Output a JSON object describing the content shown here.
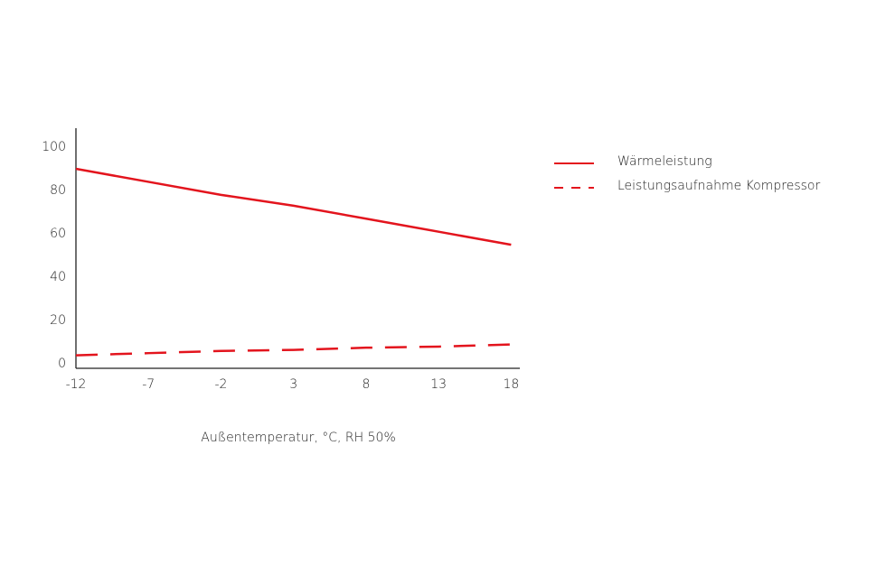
{
  "chart_data": {
    "type": "line",
    "x_label": "Außentemperatur, °C, RH 50%",
    "x": [
      -12,
      -7,
      -2,
      3,
      8,
      13,
      18
    ],
    "xlim": [
      -12,
      18.6
    ],
    "xticks": [
      -12,
      -7,
      -2,
      3,
      8,
      13,
      18
    ],
    "ylim": [
      -2,
      110
    ],
    "yticks": [
      0,
      20,
      40,
      60,
      80,
      100
    ],
    "legend": "right",
    "series": [
      {
        "name": "Wärmeleistung",
        "color": "#e3141d",
        "style": "solid",
        "values": [
          90,
          84,
          78,
          73,
          67,
          61,
          55
        ]
      },
      {
        "name": "Leistungsaufnahme Kompressor",
        "color": "#e3141d",
        "style": "dashed",
        "values": [
          4,
          5,
          6,
          6.5,
          7.5,
          8,
          9
        ]
      }
    ]
  }
}
